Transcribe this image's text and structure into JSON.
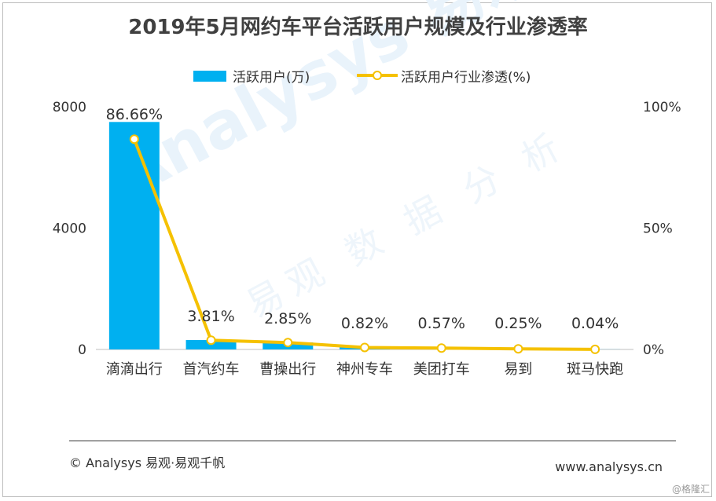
{
  "title": "2019年5月网约车平台活跃用户规模及行业渗透率",
  "legend": {
    "bar_label": "活跃用户(万)",
    "line_label": "活跃用户行业渗透(%)"
  },
  "colors": {
    "bar": "#00b0f0",
    "line": "#f5c100",
    "marker_fill": "#ffffff"
  },
  "chart_data": {
    "type": "bar",
    "categories": [
      "滴滴出行",
      "首汽约车",
      "曹操出行",
      "神州专车",
      "美团打车",
      "易到",
      "斑马快跑"
    ],
    "series": [
      {
        "name": "活跃用户(万)",
        "type": "bar",
        "axis": "left",
        "values": [
          7500,
          310,
          230,
          66,
          46,
          20,
          3
        ]
      },
      {
        "name": "活跃用户行业渗透(%)",
        "type": "line",
        "axis": "right",
        "values": [
          86.66,
          3.81,
          2.85,
          0.82,
          0.57,
          0.25,
          0.04
        ],
        "data_labels": [
          "86.66%",
          "3.81%",
          "2.85%",
          "0.82%",
          "0.57%",
          "0.25%",
          "0.04%"
        ]
      }
    ],
    "y_left": {
      "ylim": [
        0,
        8000
      ],
      "ticks": [
        "0",
        "4000",
        "8000"
      ]
    },
    "y_right": {
      "ylim": [
        0,
        100
      ],
      "ticks": [
        "0%",
        "50%",
        "100%"
      ]
    },
    "grid": false,
    "legend_position": "top-center"
  },
  "watermark": {
    "brand": "Analysys 易观",
    "slogan": "易观 数 据 分 析"
  },
  "footer": {
    "copyright": "© Analysys  易观·易观千帆",
    "website": "www.analysys.cn",
    "stamp": "@格隆汇"
  }
}
